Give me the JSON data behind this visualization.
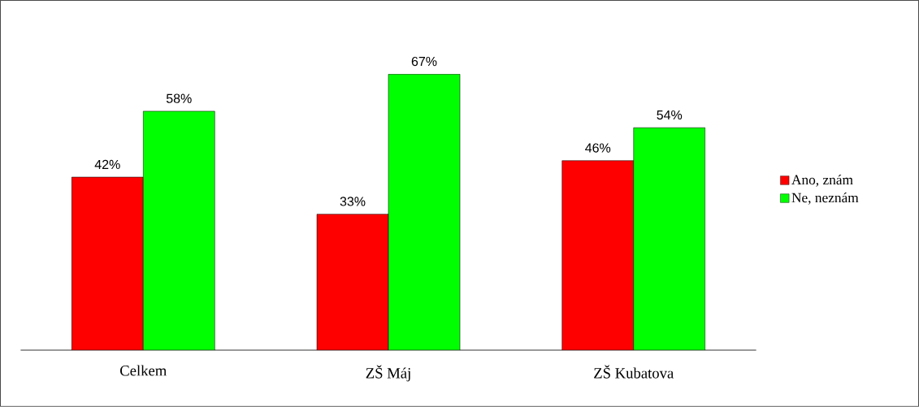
{
  "chart_data": {
    "type": "bar",
    "categories": [
      "Celkem",
      "ZŠ Máj",
      "ZŠ Kubatova"
    ],
    "series": [
      {
        "name": "Ano, znám",
        "color": "#ff0000",
        "values": [
          42,
          33,
          46
        ],
        "value_labels": [
          "42%",
          "33%",
          "46%"
        ]
      },
      {
        "name": "Ne, neznám",
        "color": "#00ff00",
        "values": [
          58,
          67,
          54
        ],
        "value_labels": [
          "58%",
          "67%",
          "54%"
        ]
      }
    ],
    "legend": "right"
  }
}
